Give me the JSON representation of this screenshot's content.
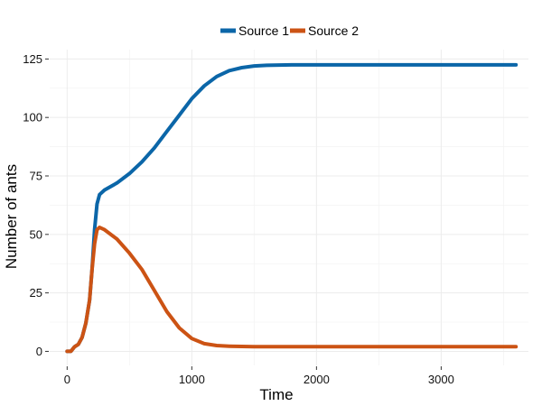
{
  "chart_data": {
    "type": "line",
    "title": "",
    "xlabel": "Time",
    "ylabel": "Number of ants",
    "xlim": [
      -140,
      3700
    ],
    "ylim": [
      -6,
      129
    ],
    "x_ticks": [
      0,
      1000,
      2000,
      3000
    ],
    "x_minor_ticks": [
      500,
      1500,
      2500,
      3500
    ],
    "y_ticks": [
      0,
      25,
      50,
      75,
      100,
      125
    ],
    "y_minor_ticks": [
      12.5,
      37.5,
      62.5,
      87.5,
      112.5
    ],
    "grid": true,
    "legend_position": "top",
    "series": [
      {
        "name": "Source 1",
        "color": "#0b66a8",
        "x": [
          0,
          30,
          60,
          90,
          120,
          150,
          180,
          200,
          220,
          240,
          260,
          300,
          400,
          500,
          600,
          700,
          800,
          900,
          1000,
          1100,
          1200,
          1300,
          1400,
          1500,
          1600,
          1800,
          2000,
          2500,
          3000,
          3600
        ],
        "y": [
          0,
          0,
          2,
          3,
          6,
          12,
          22,
          35,
          52,
          63,
          67,
          69,
          72,
          76,
          81,
          87,
          94,
          101,
          108,
          113.5,
          117.5,
          120,
          121.3,
          122,
          122.3,
          122.5,
          122.5,
          122.5,
          122.5,
          122.5
        ]
      },
      {
        "name": "Source 2",
        "color": "#cc5314",
        "x": [
          0,
          30,
          60,
          90,
          120,
          150,
          180,
          200,
          220,
          240,
          260,
          300,
          400,
          500,
          600,
          700,
          800,
          900,
          1000,
          1100,
          1200,
          1300,
          1400,
          1500,
          1600,
          1800,
          2000,
          2500,
          3000,
          3600
        ],
        "y": [
          0,
          0,
          2,
          3,
          6,
          12,
          22,
          35,
          46,
          52,
          53,
          52,
          48,
          42,
          35,
          26,
          17,
          10,
          5.5,
          3.3,
          2.5,
          2.2,
          2.1,
          2,
          2,
          2,
          2,
          2,
          2,
          2
        ]
      }
    ]
  }
}
